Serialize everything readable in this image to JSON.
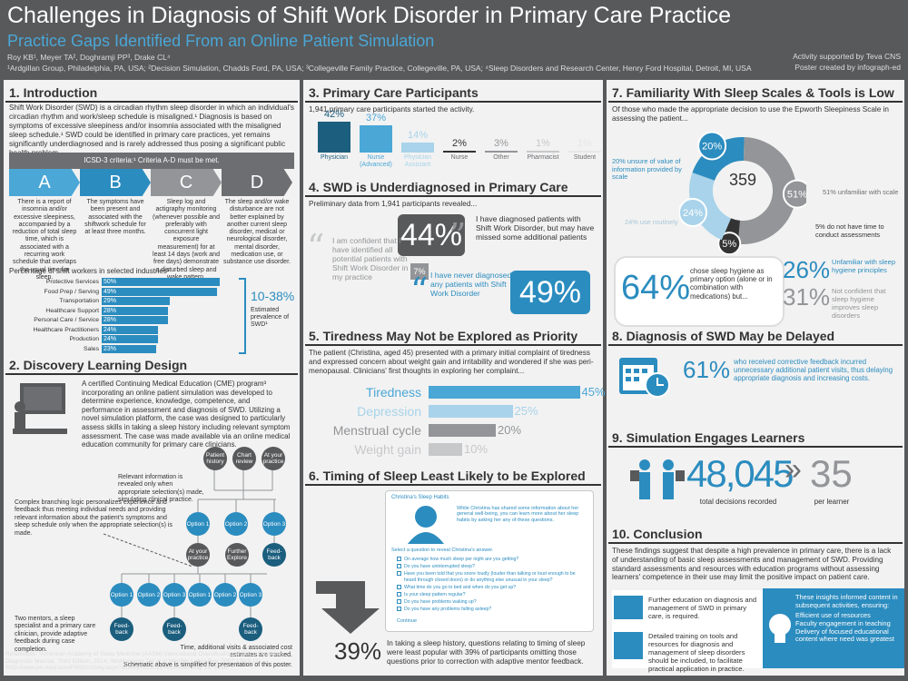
{
  "header": {
    "title": "Challenges in Diagnosis of Shift Work Disorder in Primary Care Practice",
    "subtitle": "Practice Gaps Identified From an Online Patient Simulation",
    "authors": "Roy KB¹, Meyer TA², Doghramji PP³, Drake CL⁴",
    "affiliations": "¹Ardgillan Group, Philadelphia, PA, USA; ²Decision Simulation, Chadds Ford, PA, USA; ³Collegeville Family Practice, Collegeville, PA, USA; ⁴Sleep Disorders and Research Center, Henry Ford Hospital, Detroit, MI, USA",
    "support1": "Activity supported by Teva CNS",
    "support2": "Poster created by infograph-ed"
  },
  "intro": {
    "title": "1. Introduction",
    "body": "Shift Work Disorder (SWD) is a circadian rhythm sleep disorder in which an individual's circadian rhythm and work/sleep schedule is misaligned.¹ Diagnosis is based on symptoms of excessive sleepiness and/or insomnia associated with the misaligned sleep schedule.¹ SWD could be identified in primary care practices, yet remains significantly underdiagnosed and is rarely addressed thus posing a significant public health problem.",
    "icsd": "ICSD-3 criteria:¹   Criteria A-D must be met.",
    "criteria": [
      {
        "letter": "A",
        "text": "There is a report of insomnia and/or excessive sleepiness, accompanied by a reduction of total sleep time, which is associated with a recurring work schedule that overlaps the usual time for sleep.",
        "color": "#4aa7d6"
      },
      {
        "letter": "B",
        "text": "The symptoms have been present and associated with the shiftwork schedule for at least three months.",
        "color": "#2b8cbf"
      },
      {
        "letter": "C",
        "text": "Sleep log and actigraphy monitoring (whenever possible and preferably with concurrent light exposure measurement) for at least 14 days (work and free days) demonstrate a disturbed sleep and wake pattern.",
        "color": "#939598"
      },
      {
        "letter": "D",
        "text": "The sleep and/or wake disturbance are not better explained by another current sleep disorder, medical or neurological disorder, mental disorder, medication use, or substance use disorder.",
        "color": "#6d6e71"
      }
    ],
    "industry_title": "Percentage of shift workers in selected industries²",
    "industries": [
      {
        "label": "Protective Services",
        "value": 50,
        "text": "50%"
      },
      {
        "label": "Food Prep / Serving",
        "value": 49,
        "text": "49%"
      },
      {
        "label": "Transportation",
        "value": 29,
        "text": "29%"
      },
      {
        "label": "Healthcare Support",
        "value": 28,
        "text": "28%"
      },
      {
        "label": "Personal Care / Service",
        "value": 28,
        "text": "28%"
      },
      {
        "label": "Healthcare Practitioners",
        "value": 24,
        "text": "24%"
      },
      {
        "label": "Production",
        "value": 24,
        "text": "24%"
      },
      {
        "label": "Sales",
        "value": 23,
        "text": "23%"
      }
    ],
    "prevalence_value": "10-38%",
    "prevalence_label": "Estimated prevalence of SWD¹"
  },
  "discovery": {
    "title": "2. Discovery Learning Design",
    "body": "A certified Continuing Medical Education (CME) program³ incorporating an online patient simulation was developed to determine experience, knowledge, competence, and performance in assessment and diagnosis of SWD. Utilizing a novel simulation platform, the case was designed to particularly assess skills in taking a sleep history including relevant symptom assessment. The case was made available via an online medical education community for primary care clinicians.",
    "note1": "Relevant information is revealed only when appropriate selection(s) made, simulating clinical practice.",
    "note2": "Complex branching logic personalizes experience and feedback thus meeting individual needs and providing relevant information about the patient's symptoms and sleep schedule only when the appropriate selection(s) is made.",
    "note3": "Two mentors, a sleep specialist and a primary care clinician, provide adaptive feedback during case completion.",
    "note4": "Time, additional visits & associated cost estimates are tracked.",
    "note5": "Schematic above is simplified for presentation of this poster.",
    "nodes": {
      "patient_history": "Patient history",
      "chart_review": "Chart review",
      "at_your_practice": "At your practice",
      "option1": "Option 1",
      "option2": "Option 2",
      "option3": "Option 3",
      "further_explore": "Further Explore",
      "feedback": "Feed-back"
    },
    "references": "References: ¹American Academy of Sleep Medicine (AASM) International Classification of Sleep Disorders Diagnostic Manual, Third Edition, 2014; ²McMenamin TM et al Monthly Labor Rev. 2007;130:9-11; ³http://www.pri-med.com/PMO/Activity.aspx?activity=222015 Accessed May 28, 2014."
  },
  "participants": {
    "title": "3. Primary Care Participants",
    "intro": "1,941 primary care participants started the activity.",
    "groups": [
      {
        "label": "Physician",
        "value": 42,
        "text": "42%",
        "color": "#1b5e7e"
      },
      {
        "label": "Nurse (Advanced)",
        "value": 37,
        "text": "37%",
        "color": "#4aa7d6"
      },
      {
        "label": "Physician Assistant",
        "value": 14,
        "text": "14%",
        "color": "#a8d3ea"
      },
      {
        "label": "Nurse",
        "value": 2,
        "text": "2%",
        "color": "#333333"
      },
      {
        "label": "Other",
        "value": 3,
        "text": "3%",
        "color": "#939598"
      },
      {
        "label": "Pharmacist",
        "value": 1,
        "text": "1%",
        "color": "#c7c8ca"
      },
      {
        "label": "Student",
        "value": 1,
        "text": "1%",
        "color": "#e6e7e8"
      }
    ]
  },
  "underdiag": {
    "title": "4. SWD is Underdiagnosed in Primary Care",
    "intro": "Preliminary data from 1,941 participants revealed...",
    "p44": "44%",
    "t44": "I have diagnosed patients with Shift Work Disorder, but may have missed some additional patients",
    "t7": "I am confident that I have identified all potential patients with Shift Work Disorder in my practice",
    "p7": "7%",
    "t49": "I have never diagnosed any patients with Shift Work Disorder",
    "p49": "49%"
  },
  "tiredness": {
    "title": "5. Tiredness May Not be Explored as Priority",
    "body": "The patient (Christina, aged 45) presented with a primary initial complaint of tiredness and expressed concern about weight gain and irritability and wondered if she was peri-menopausal. Clinicians' first thoughts in exploring her complaint...",
    "items": [
      {
        "label": "Tiredness",
        "value": 45,
        "text": "45%",
        "color": "#4aa7d6"
      },
      {
        "label": "Depression",
        "value": 25,
        "text": "25%",
        "color": "#a8d3ea"
      },
      {
        "label": "Menstrual cycle",
        "value": 20,
        "text": "20%",
        "color": "#939598"
      },
      {
        "label": "Weight gain",
        "value": 10,
        "text": "10%",
        "color": "#c7c8ca"
      }
    ]
  },
  "timing": {
    "title": "6. Timing of Sleep Least Likely to be Explored",
    "screen_title": "Christina's Sleep Habits",
    "screen_text": "While Christina has shared some information about her general well-being, you can learn more about her sleep habits by asking her any of these questions.",
    "select_prompt": "Select a question to reveal Christina's answer.",
    "questions": [
      "On average how much sleep per night are you getting?",
      "Do you have uninterrupted sleep?",
      "Have you been told that you snore loudly (louder than talking or loud enough to be heard through closed doors) or do anything else unusual in your sleep?",
      "What time do you go to bed and when do you get up?",
      "Is your sleep pattern regular?",
      "Do you have problems waking up?",
      "Do you have any problems falling asleep?"
    ],
    "continue": "Continue",
    "pct": "39%",
    "caption": "In taking a sleep history, questions relating to timing of sleep were least popular with 39% of participants omitting those questions prior to correction with adaptive mentor feedback."
  },
  "familiarity": {
    "title": "7. Familiarity With Sleep Scales & Tools is Low",
    "intro": "Of those who made the appropriate decision to use the Epworth Sleepiness Scale in assessing the patient...",
    "center": "359",
    "slices": [
      {
        "value": 20,
        "text": "20%",
        "color": "#2b8cbf"
      },
      {
        "value": 51,
        "text": "51%",
        "color": "#939598"
      },
      {
        "value": 5,
        "text": "5%",
        "color": "#333333"
      },
      {
        "value": 24,
        "text": "24%",
        "color": "#a8d3ea"
      }
    ],
    "l20": "20% unsure of value of information provided by scale",
    "l51": "51% unfamiliar with scale",
    "l24": "24% use routinely",
    "l5": "5% do not have time to conduct assessments",
    "p64": "64%",
    "t64": "chose sleep hygiene as primary option (alone or in combination with medications) but...",
    "p26": "26%",
    "t26": "Unfamiliar with sleep hygiene principles",
    "p31": "31%",
    "t31": "Not confident that sleep hygiene improves sleep disorders"
  },
  "delayed": {
    "title": "8. Diagnosis of SWD May be Delayed",
    "pct": "61%",
    "text": "who received corrective feedback incurred unnecessary additional patient visits, thus delaying appropriate diagnosis and increasing costs."
  },
  "engages": {
    "title": "9. Simulation Engages Learners",
    "total": "48,045",
    "total_label": "total decisions recorded",
    "per": "35",
    "per_label": "per learner"
  },
  "conclusion": {
    "title": "10. Conclusion",
    "body": "These findings suggest that despite a high prevalence in primary care, there is a lack of understanding of basic sleep assessments and management of SWD. Providing standard assessments and resources with education programs without assessing learners' competence in their use may limit the positive impact on patient care.",
    "item1": "Further education on diagnosis and management of SWD in primary care, is required.",
    "item2": "Detailed training on tools and resources for diagnosis and management of sleep disorders should be included, to facilitate practical application in practice.",
    "insight_title": "These insights informed content in subsequent activities, ensuring:",
    "insights": [
      "Efficient use of resources",
      "Faculty engagement in teaching",
      "Delivery of focused educational content where need was greatest"
    ]
  }
}
